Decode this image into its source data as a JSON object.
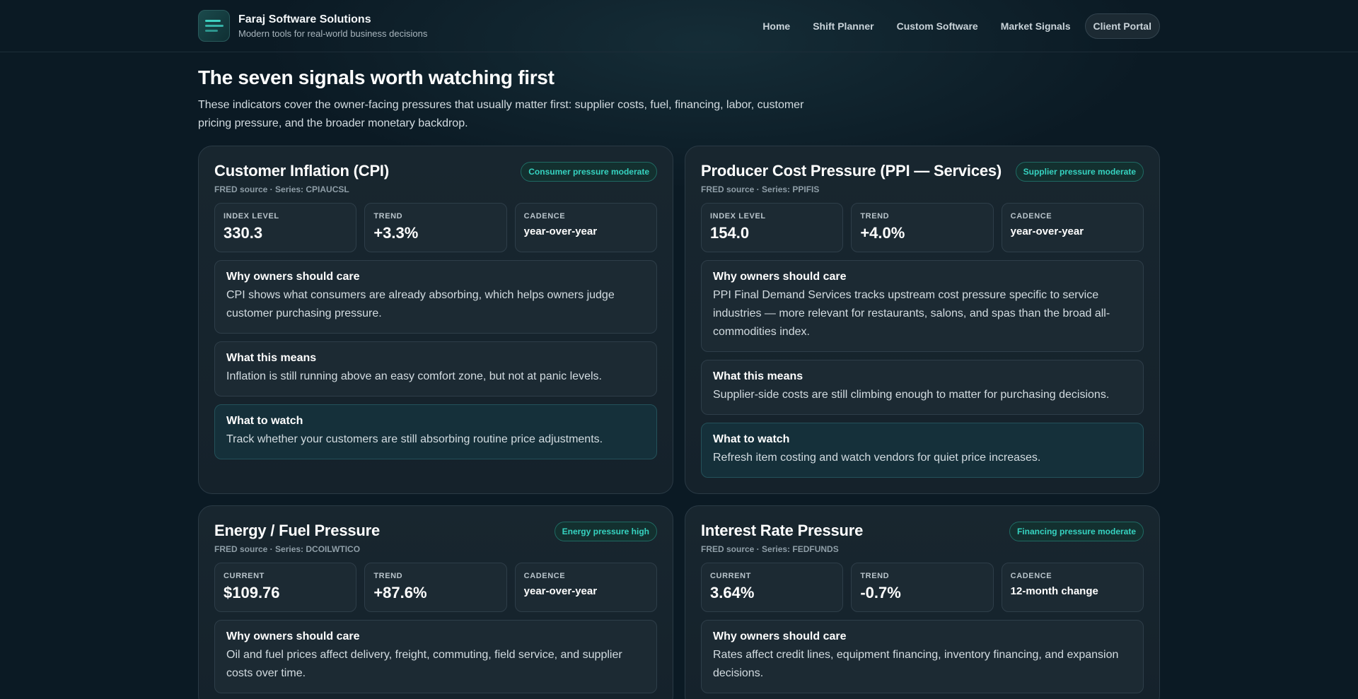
{
  "header": {
    "brand_name": "Faraj Software Solutions",
    "brand_tagline": "Modern tools for real-world business decisions",
    "nav": [
      "Home",
      "Shift Planner",
      "Custom Software",
      "Market Signals",
      "Client Portal"
    ]
  },
  "intro": {
    "title": "The seven signals worth watching first",
    "description": "These indicators cover the owner-facing pressures that usually matter first: supplier costs, fuel, financing, labor, customer pricing pressure, and the broader monetary backdrop."
  },
  "cards": [
    {
      "title": "Customer Inflation (CPI)",
      "source": "FRED source · Series: CPIAUCSL",
      "badge": "Consumer pressure moderate",
      "metrics": [
        {
          "label": "INDEX LEVEL",
          "value": "330.3"
        },
        {
          "label": "TREND",
          "value": "+3.3%"
        },
        {
          "label": "CADENCE",
          "value": "year-over-year"
        }
      ],
      "why_title": "Why owners should care",
      "why_text": "CPI shows what consumers are already absorbing, which helps owners judge customer purchasing pressure.",
      "means_title": "What this means",
      "means_text": "Inflation is still running above an easy comfort zone, but not at panic levels.",
      "watch_title": "What to watch",
      "watch_text": "Track whether your customers are still absorbing routine price adjustments."
    },
    {
      "title": "Producer Cost Pressure (PPI — Services)",
      "source": "FRED source · Series: PPIFIS",
      "badge": "Supplier pressure moderate",
      "metrics": [
        {
          "label": "INDEX LEVEL",
          "value": "154.0"
        },
        {
          "label": "TREND",
          "value": "+4.0%"
        },
        {
          "label": "CADENCE",
          "value": "year-over-year"
        }
      ],
      "why_title": "Why owners should care",
      "why_text": "PPI Final Demand Services tracks upstream cost pressure specific to service industries — more relevant for restaurants, salons, and spas than the broad all-commodities index.",
      "means_title": "What this means",
      "means_text": "Supplier-side costs are still climbing enough to matter for purchasing decisions.",
      "watch_title": "What to watch",
      "watch_text": "Refresh item costing and watch vendors for quiet price increases."
    },
    {
      "title": "Energy / Fuel Pressure",
      "source": "FRED source · Series: DCOILWTICO",
      "badge": "Energy pressure high",
      "metrics": [
        {
          "label": "CURRENT",
          "value": "$109.76"
        },
        {
          "label": "TREND",
          "value": "+87.6%"
        },
        {
          "label": "CADENCE",
          "value": "year-over-year"
        }
      ],
      "why_title": "Why owners should care",
      "why_text": "Oil and fuel prices affect delivery, freight, commuting, field service, and supplier costs over time."
    },
    {
      "title": "Interest Rate Pressure",
      "source": "FRED source · Series: FEDFUNDS",
      "badge": "Financing pressure moderate",
      "metrics": [
        {
          "label": "CURRENT",
          "value": "3.64%"
        },
        {
          "label": "TREND",
          "value": "-0.7%"
        },
        {
          "label": "CADENCE",
          "value": "12-month change"
        }
      ],
      "why_title": "Why owners should care",
      "why_text": "Rates affect credit lines, equipment financing, inventory financing, and expansion decisions."
    }
  ]
}
